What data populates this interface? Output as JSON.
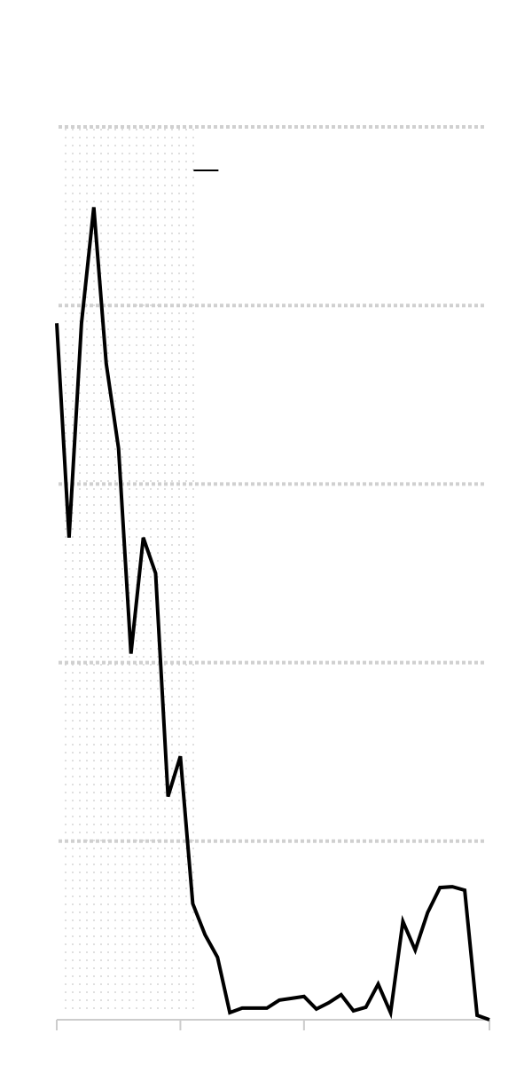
{
  "chart_data": {
    "type": "line",
    "title": "",
    "xlabel": "",
    "ylabel": "",
    "grid": true,
    "legend": "top-left",
    "shaded_period": {
      "x_start": 0,
      "x_end": 11
    },
    "xlim": [
      0,
      35
    ],
    "ylim": [
      0,
      100
    ],
    "y_gridlines": [
      20,
      40,
      60,
      80,
      100
    ],
    "x_ticks": [
      0,
      10,
      20,
      35
    ],
    "colors": {
      "series": "#000000",
      "grid": "#d0d0d0",
      "axis": "#cccccc",
      "shading_dots": "#c8c8c8"
    },
    "series": [
      {
        "values": [
          {
            "x": 0,
            "y": 78
          },
          {
            "x": 1,
            "y": 54
          },
          {
            "x": 2,
            "y": 78
          },
          {
            "x": 3,
            "y": 91
          },
          {
            "x": 4,
            "y": 73.5
          },
          {
            "x": 5,
            "y": 64
          },
          {
            "x": 6,
            "y": 41
          },
          {
            "x": 7,
            "y": 54
          },
          {
            "x": 8,
            "y": 50
          },
          {
            "x": 9,
            "y": 25
          },
          {
            "x": 10,
            "y": 29.5
          },
          {
            "x": 11,
            "y": 13
          },
          {
            "x": 12,
            "y": 9.5
          },
          {
            "x": 13,
            "y": 7
          },
          {
            "x": 14,
            "y": 0.8
          },
          {
            "x": 15,
            "y": 1.3
          },
          {
            "x": 16,
            "y": 1.3
          },
          {
            "x": 17,
            "y": 1.3
          },
          {
            "x": 18,
            "y": 2.2
          },
          {
            "x": 19,
            "y": 2.4
          },
          {
            "x": 20,
            "y": 2.6
          },
          {
            "x": 21,
            "y": 1.2
          },
          {
            "x": 22,
            "y": 1.9
          },
          {
            "x": 23,
            "y": 2.8
          },
          {
            "x": 24,
            "y": 1
          },
          {
            "x": 25,
            "y": 1.4
          },
          {
            "x": 26,
            "y": 4
          },
          {
            "x": 27,
            "y": 0.8
          },
          {
            "x": 28,
            "y": 11
          },
          {
            "x": 29,
            "y": 7.8
          },
          {
            "x": 30,
            "y": 12
          },
          {
            "x": 31,
            "y": 14.8
          },
          {
            "x": 32,
            "y": 14.9
          },
          {
            "x": 33,
            "y": 14.5
          },
          {
            "x": 34,
            "y": 0.5
          },
          {
            "x": 35,
            "y": 0
          }
        ]
      }
    ]
  }
}
